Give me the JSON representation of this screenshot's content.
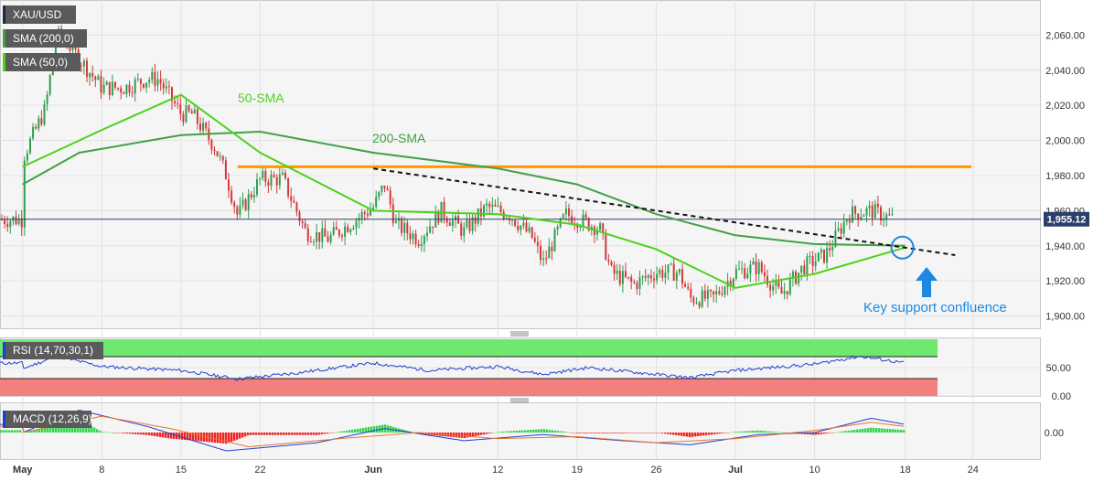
{
  "chart_data": [
    {
      "type": "candlestick",
      "symbol": "XAU/USD",
      "indicators": [
        "SMA (200,0)",
        "SMA (50,0)"
      ],
      "ylim": [
        1893,
        2080
      ],
      "y_ticks": [
        "1,900.00",
        "1,920.00",
        "1,940.00",
        "1,960.00",
        "1,980.00",
        "2,000.00",
        "2,020.00",
        "2,040.00",
        "2,060.00"
      ],
      "y_tick_values": [
        1900,
        1920,
        1940,
        1960,
        1980,
        2000,
        2020,
        2040,
        2060
      ],
      "x_ticks": [
        "May",
        "8",
        "15",
        "22",
        "Jun",
        "12",
        "19",
        "26",
        "Jul",
        "10",
        "18",
        "24"
      ],
      "x_tick_dates": [
        "2023-05-01",
        "2023-05-08",
        "2023-05-15",
        "2023-05-22",
        "2023-06-01",
        "2023-06-12",
        "2023-06-19",
        "2023-06-26",
        "2023-07-03",
        "2023-07-10",
        "2023-07-18",
        "2023-07-24"
      ],
      "last_price": "1,955.12",
      "annotations": {
        "sma50_label": "50-SMA",
        "sma200_label": "200-SMA",
        "support_label": "Key support confluence"
      },
      "horizontal_level": 1985,
      "current_price_line": 1955.12,
      "trendline": [
        {
          "date": "2023-06-01",
          "value": 1984
        },
        {
          "date": "2023-07-20",
          "value": 1937
        }
      ],
      "price_path": [
        {
          "date": "2023-05-01",
          "value": 1990
        },
        {
          "date": "2023-05-03",
          "value": 2018
        },
        {
          "date": "2023-05-04",
          "value": 2060
        },
        {
          "date": "2023-05-05",
          "value": 2055
        },
        {
          "date": "2023-05-08",
          "value": 2030
        },
        {
          "date": "2023-05-10",
          "value": 2030
        },
        {
          "date": "2023-05-12",
          "value": 2035
        },
        {
          "date": "2023-05-13",
          "value": 2035
        },
        {
          "date": "2023-05-15",
          "value": 2015
        },
        {
          "date": "2023-05-16",
          "value": 2015
        },
        {
          "date": "2023-05-18",
          "value": 1996
        },
        {
          "date": "2023-05-19",
          "value": 1980
        },
        {
          "date": "2023-05-20",
          "value": 1957
        },
        {
          "date": "2023-05-22",
          "value": 1978
        },
        {
          "date": "2023-05-24",
          "value": 1978
        },
        {
          "date": "2023-05-26",
          "value": 1948
        },
        {
          "date": "2023-05-28",
          "value": 1944
        },
        {
          "date": "2023-06-01",
          "value": 1962
        },
        {
          "date": "2023-06-02",
          "value": 1975
        },
        {
          "date": "2023-06-03",
          "value": 1952
        },
        {
          "date": "2023-06-05",
          "value": 1944
        },
        {
          "date": "2023-06-07",
          "value": 1960
        },
        {
          "date": "2023-06-09",
          "value": 1948
        },
        {
          "date": "2023-06-11",
          "value": 1962
        },
        {
          "date": "2023-06-13",
          "value": 1958
        },
        {
          "date": "2023-06-15",
          "value": 1945
        },
        {
          "date": "2023-06-16",
          "value": 1930
        },
        {
          "date": "2023-06-18",
          "value": 1958
        },
        {
          "date": "2023-06-21",
          "value": 1950
        },
        {
          "date": "2023-06-22",
          "value": 1925
        },
        {
          "date": "2023-06-24",
          "value": 1918
        },
        {
          "date": "2023-06-26",
          "value": 1925
        },
        {
          "date": "2023-06-28",
          "value": 1925
        },
        {
          "date": "2023-06-29",
          "value": 1910
        },
        {
          "date": "2023-07-01",
          "value": 1910
        },
        {
          "date": "2023-07-03",
          "value": 1925
        },
        {
          "date": "2023-07-05",
          "value": 1928
        },
        {
          "date": "2023-07-07",
          "value": 1912
        },
        {
          "date": "2023-07-09",
          "value": 1928
        },
        {
          "date": "2023-07-11",
          "value": 1935
        },
        {
          "date": "2023-07-13",
          "value": 1958
        },
        {
          "date": "2023-07-15",
          "value": 1960
        },
        {
          "date": "2023-07-17",
          "value": 1955
        }
      ],
      "series": [
        {
          "name": "SMA (200,0)",
          "color": "#43a047",
          "values": [
            {
              "date": "2023-05-01",
              "value": 1975
            },
            {
              "date": "2023-05-06",
              "value": 1993
            },
            {
              "date": "2023-05-15",
              "value": 2003
            },
            {
              "date": "2023-05-22",
              "value": 2005
            },
            {
              "date": "2023-06-01",
              "value": 1993
            },
            {
              "date": "2023-06-12",
              "value": 1984
            },
            {
              "date": "2023-06-19",
              "value": 1975
            },
            {
              "date": "2023-06-26",
              "value": 1958
            },
            {
              "date": "2023-07-03",
              "value": 1946
            },
            {
              "date": "2023-07-10",
              "value": 1941
            },
            {
              "date": "2023-07-18",
              "value": 1940
            }
          ]
        },
        {
          "name": "SMA (50,0)",
          "color": "#4cd21a",
          "values": [
            {
              "date": "2023-05-01",
              "value": 1985
            },
            {
              "date": "2023-05-08",
              "value": 2006
            },
            {
              "date": "2023-05-15",
              "value": 2026
            },
            {
              "date": "2023-05-22",
              "value": 1993
            },
            {
              "date": "2023-06-01",
              "value": 1960
            },
            {
              "date": "2023-06-12",
              "value": 1958
            },
            {
              "date": "2023-06-19",
              "value": 1952
            },
            {
              "date": "2023-06-26",
              "value": 1938
            },
            {
              "date": "2023-07-03",
              "value": 1916
            },
            {
              "date": "2023-07-10",
              "value": 1924
            },
            {
              "date": "2023-07-18",
              "value": 1939
            }
          ]
        }
      ]
    },
    {
      "type": "line",
      "indicator": "RSI (14,70,30,1)",
      "ylim": [
        0,
        100
      ],
      "y_ticks": [
        "50.00",
        "0.00"
      ],
      "y_tick_values": [
        50,
        0
      ],
      "overbought": 70,
      "oversold": 30,
      "series": [
        {
          "name": "RSI",
          "color": "#1f3fd1",
          "values": [
            {
              "date": "2023-05-01",
              "value": 48
            },
            {
              "date": "2023-05-04",
              "value": 70
            },
            {
              "date": "2023-05-08",
              "value": 52
            },
            {
              "date": "2023-05-15",
              "value": 45
            },
            {
              "date": "2023-05-20",
              "value": 30
            },
            {
              "date": "2023-05-25",
              "value": 40
            },
            {
              "date": "2023-06-01",
              "value": 58
            },
            {
              "date": "2023-06-06",
              "value": 45
            },
            {
              "date": "2023-06-12",
              "value": 52
            },
            {
              "date": "2023-06-16",
              "value": 38
            },
            {
              "date": "2023-06-20",
              "value": 50
            },
            {
              "date": "2023-06-26",
              "value": 38
            },
            {
              "date": "2023-06-29",
              "value": 32
            },
            {
              "date": "2023-07-03",
              "value": 45
            },
            {
              "date": "2023-07-10",
              "value": 56
            },
            {
              "date": "2023-07-14",
              "value": 70
            },
            {
              "date": "2023-07-18",
              "value": 58
            }
          ]
        }
      ]
    },
    {
      "type": "bar",
      "indicator": "MACD (12,26,9)",
      "y_ticks": [
        "0.00"
      ],
      "y_tick_values": [
        0
      ],
      "ylim": [
        -13,
        13
      ],
      "series": [
        {
          "name": "MACD",
          "color": "#1f3fd1",
          "values": [
            {
              "date": "2023-05-01",
              "value": 0
            },
            {
              "date": "2023-05-06",
              "value": 11
            },
            {
              "date": "2023-05-12",
              "value": 3
            },
            {
              "date": "2023-05-19",
              "value": -9
            },
            {
              "date": "2023-05-27",
              "value": -5
            },
            {
              "date": "2023-06-02",
              "value": 2
            },
            {
              "date": "2023-06-09",
              "value": -4
            },
            {
              "date": "2023-06-16",
              "value": -1
            },
            {
              "date": "2023-06-23",
              "value": -4
            },
            {
              "date": "2023-06-29",
              "value": -6
            },
            {
              "date": "2023-07-05",
              "value": -1
            },
            {
              "date": "2023-07-10",
              "value": 0
            },
            {
              "date": "2023-07-15",
              "value": 7
            },
            {
              "date": "2023-07-18",
              "value": 4
            }
          ]
        },
        {
          "name": "Signal",
          "color": "#e8762d",
          "values": [
            {
              "date": "2023-05-01",
              "value": 0
            },
            {
              "date": "2023-05-08",
              "value": 8
            },
            {
              "date": "2023-05-14",
              "value": 2
            },
            {
              "date": "2023-05-21",
              "value": -7
            },
            {
              "date": "2023-05-29",
              "value": -3
            },
            {
              "date": "2023-06-05",
              "value": 0
            },
            {
              "date": "2023-06-12",
              "value": -3
            },
            {
              "date": "2023-06-19",
              "value": -2
            },
            {
              "date": "2023-06-26",
              "value": -5
            },
            {
              "date": "2023-07-03",
              "value": -3
            },
            {
              "date": "2023-07-10",
              "value": 1
            },
            {
              "date": "2023-07-15",
              "value": 5
            },
            {
              "date": "2023-07-18",
              "value": 3
            }
          ]
        }
      ],
      "histogram_colors": {
        "positive": "#2fd64c",
        "negative": "#ee2222"
      }
    }
  ]
}
